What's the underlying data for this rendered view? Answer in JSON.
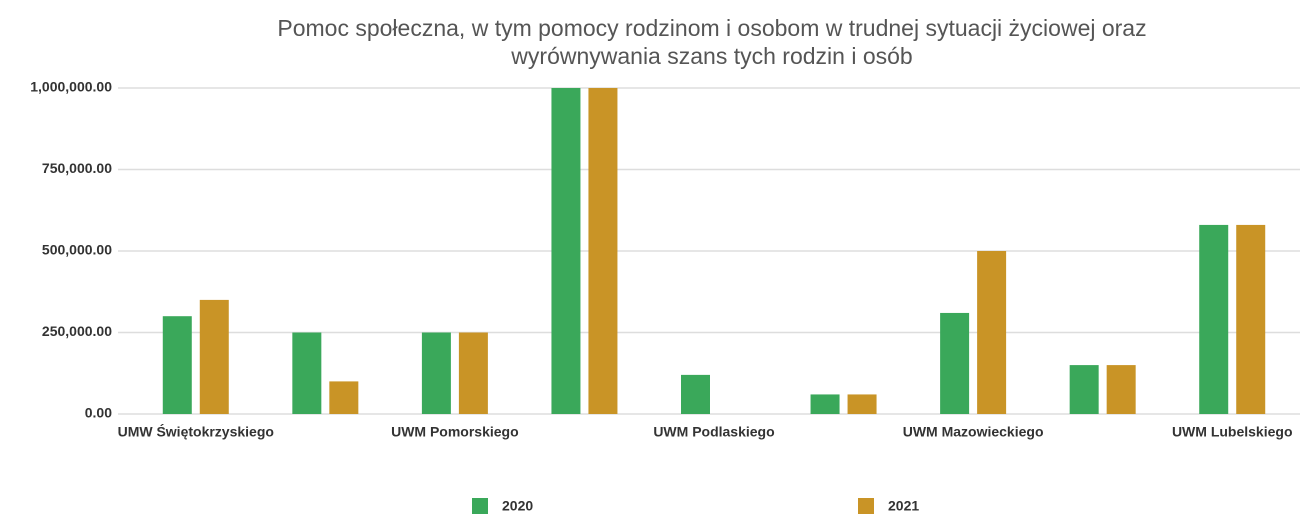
{
  "chart_data": {
    "type": "bar",
    "title": [
      "Pomoc społeczna, w tym pomocy rodzinom i osobom w trudnej sytuacji życiowej oraz",
      "wyrównywania szans tych rodzin i osób"
    ],
    "categories": [
      "UMW Świętokrzyskiego",
      null,
      "UWM Pomorskiego",
      null,
      "UWM Podlaskiego",
      null,
      "UWM Mazowieckiego",
      null,
      "UWM Lubelskiego"
    ],
    "series": [
      {
        "name": "2020",
        "color": "#3aa85a",
        "values": [
          300000,
          250000,
          250000,
          1000000,
          120000,
          60000,
          310000,
          150000,
          580000
        ]
      },
      {
        "name": "2021",
        "color": "#c99426",
        "values": [
          350000,
          100000,
          250000,
          1000000,
          0,
          60000,
          500000,
          150000,
          580000
        ]
      }
    ],
    "ylim": [
      0,
      1000000
    ],
    "yticks": [
      {
        "value": 0,
        "label": "0.00"
      },
      {
        "value": 250000,
        "label": "250,000.00"
      },
      {
        "value": 500000,
        "label": "500,000.00"
      },
      {
        "value": 750000,
        "label": "750,000.00"
      },
      {
        "value": 1000000,
        "label": "1,000,000.00"
      }
    ],
    "grid": true,
    "legend": "bottom"
  }
}
